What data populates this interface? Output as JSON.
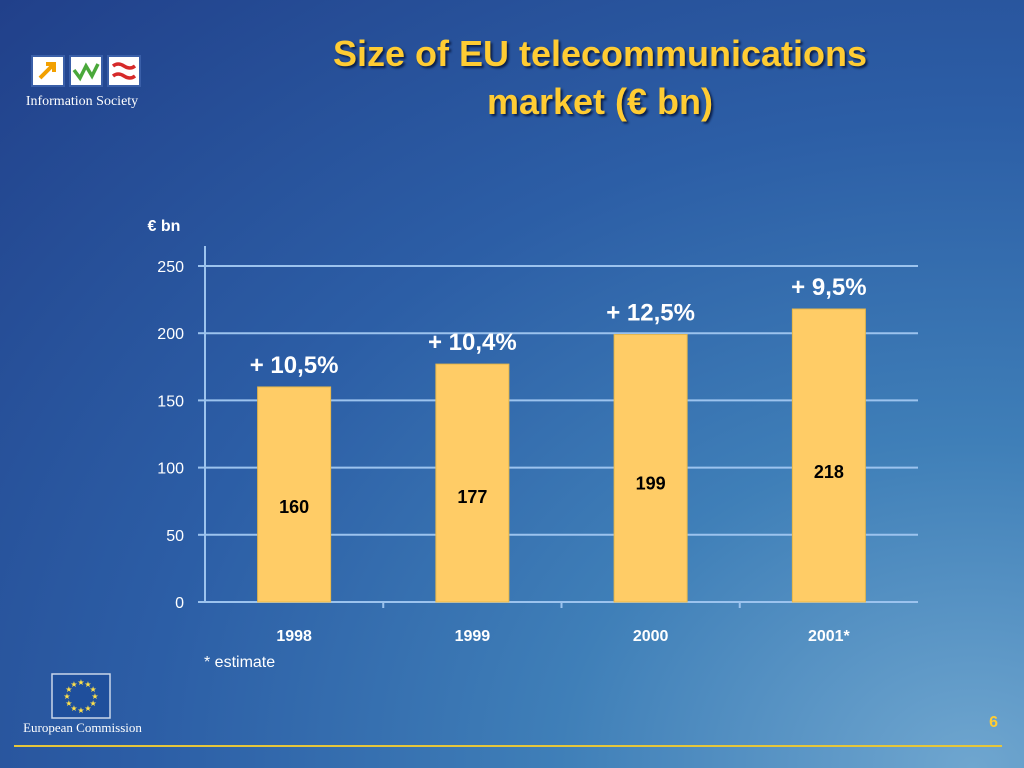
{
  "slide": {
    "title_line1": "Size of EU telecommunications",
    "title_line2": "market (€ bn)",
    "page_number": "6",
    "footnote": "* estimate"
  },
  "logos": {
    "info_society": "Information Society",
    "european_commission": "European Commission"
  },
  "colors": {
    "bar_fill": "#ffcc66",
    "title": "#ffcc33",
    "gridline": "#9cc3ee",
    "footer_line": "#e6c63a"
  },
  "chart_data": {
    "type": "bar",
    "title": "Size of EU telecommunications market (€ bn)",
    "ylabel": "€ bn",
    "xlabel": "",
    "categories": [
      "1998",
      "1999",
      "2000",
      "2001*"
    ],
    "values": [
      160,
      177,
      199,
      218
    ],
    "value_labels": [
      "160",
      "177",
      "199",
      "218"
    ],
    "growth_labels": [
      "+ 10,5%",
      "+ 10,4%",
      "+ 12,5%",
      "+ 9,5%"
    ],
    "ylim": [
      0,
      250
    ],
    "yticks": [
      "0",
      "50",
      "100",
      "150",
      "200",
      "250"
    ],
    "grid": true
  }
}
